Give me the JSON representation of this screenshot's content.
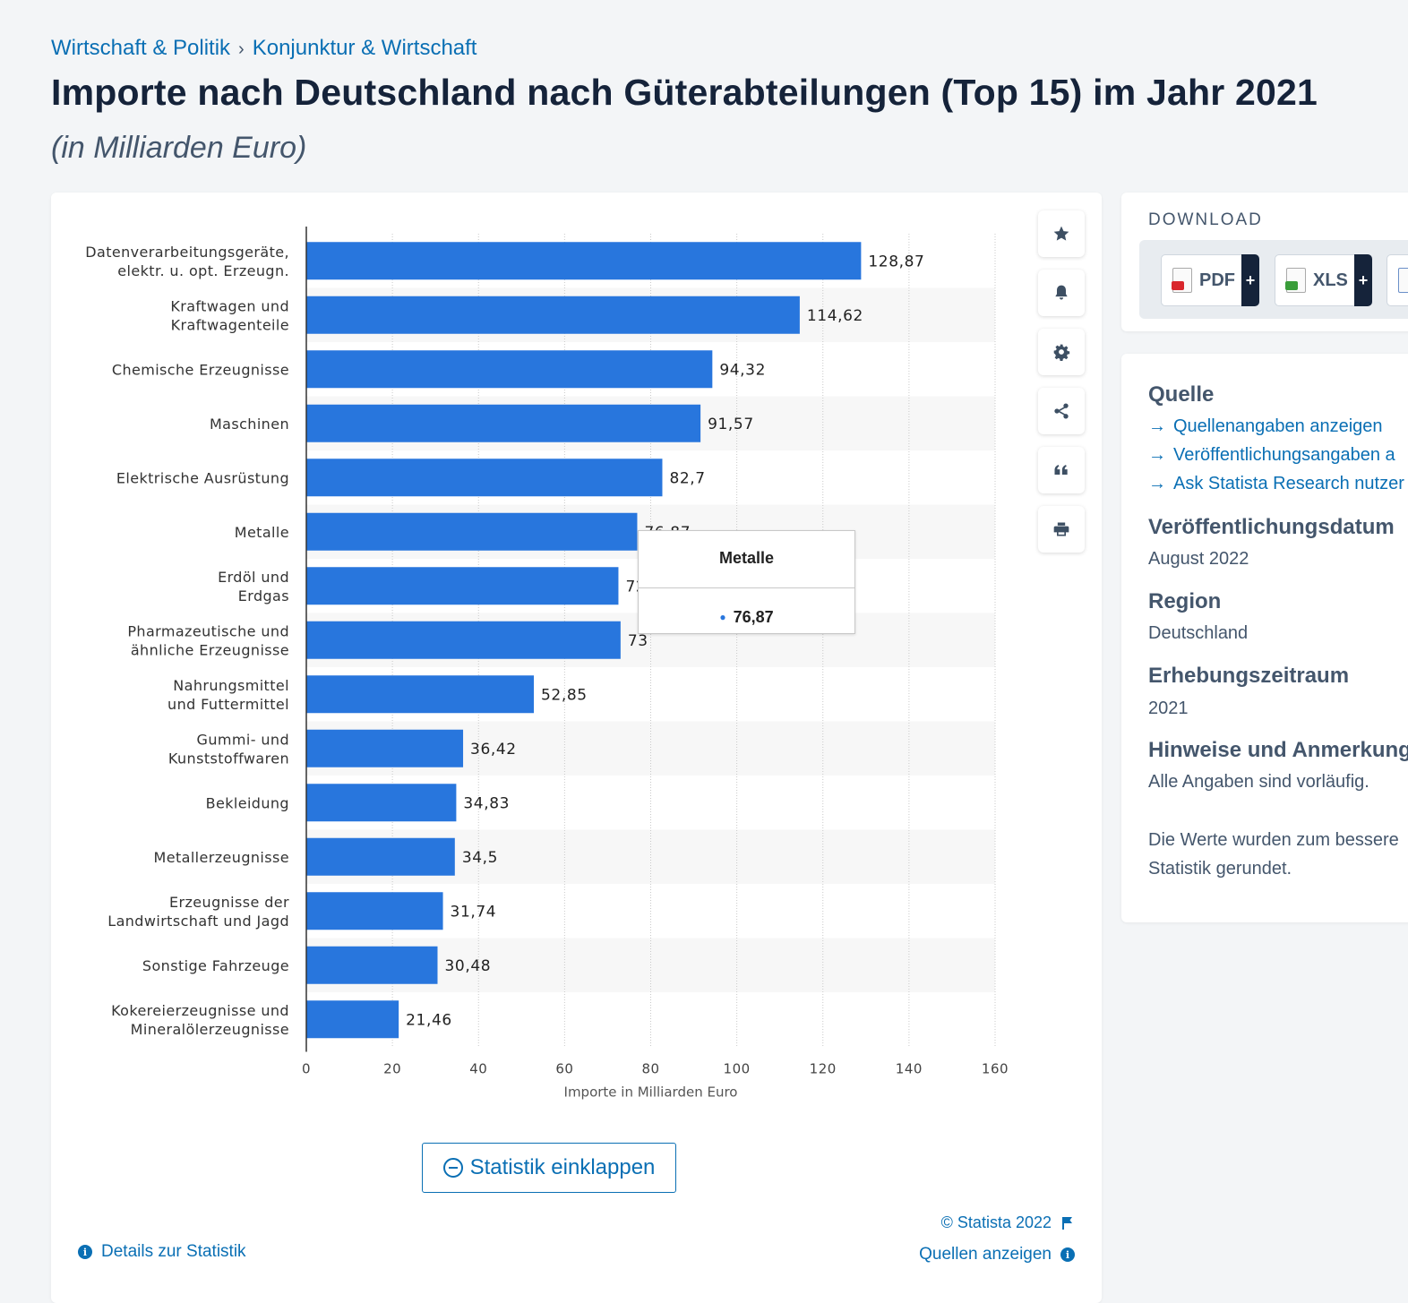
{
  "breadcrumb": {
    "level1": "Wirtschaft & Politik",
    "separator": "›",
    "level2": "Konjunktur & Wirtschaft"
  },
  "header": {
    "title": "Importe nach Deutschland nach Güterabteilungen (Top 15) im Jahr 2021",
    "subtitle": "(in Milliarden Euro)"
  },
  "toolbar": {
    "icons": [
      "star-icon",
      "bell-icon",
      "gear-icon",
      "share-icon",
      "quote-icon",
      "print-icon"
    ]
  },
  "tooltip": {
    "title": "Metalle",
    "value": "76,87"
  },
  "chart_data": {
    "type": "bar",
    "orientation": "horizontal",
    "categories": [
      [
        "Datenverarbeitungsgeräte,",
        "elektr. u. opt. Erzeugn."
      ],
      [
        "Kraftwagen und",
        "Kraftwagenteile"
      ],
      [
        "Chemische Erzeugnisse"
      ],
      [
        "Maschinen"
      ],
      [
        "Elektrische Ausrüstung"
      ],
      [
        "Metalle"
      ],
      [
        "Erdöl und",
        "Erdgas"
      ],
      [
        "Pharmazeutische und",
        "ähnliche Erzeugnisse"
      ],
      [
        "Nahrungsmittel",
        "und Futtermittel"
      ],
      [
        "Gummi- und",
        "Kunststoffwaren"
      ],
      [
        "Bekleidung"
      ],
      [
        "Metallerzeugnisse"
      ],
      [
        "Erzeugnisse der",
        "Landwirtschaft und Jagd"
      ],
      [
        "Sonstige Fahrzeuge"
      ],
      [
        "Kokereierzeugnisse und",
        "Mineralölerzeugnisse"
      ]
    ],
    "values": [
      128.87,
      114.62,
      94.32,
      91.57,
      82.7,
      76.87,
      72.5,
      73,
      52.85,
      36.42,
      34.83,
      34.5,
      31.74,
      30.48,
      21.46
    ],
    "value_labels": [
      "128,87",
      "114,62",
      "94,32",
      "91,57",
      "82,7",
      "76,87",
      "72,5",
      "73",
      "52,85",
      "36,42",
      "34,83",
      "34,5",
      "31,74",
      "30,48",
      "21,46"
    ],
    "x_ticks": [
      "0",
      "20",
      "40",
      "60",
      "80",
      "100",
      "120",
      "140",
      "160"
    ],
    "xlim": [
      0,
      160
    ],
    "xlabel": "Importe in Milliarden Euro",
    "bar_color": "#2876dd",
    "grid": true,
    "highlighted_index": 5
  },
  "actions": {
    "collapse_label": "Statistik einklappen",
    "copyright": "© Statista 2022",
    "sources_label": "Quellen anzeigen",
    "details_label": "Details zur Statistik"
  },
  "download": {
    "title": "DOWNLOAD",
    "buttons": [
      {
        "label": "PDF",
        "color": "#d9262c"
      },
      {
        "label": "XLS",
        "color": "#3a9d3a"
      }
    ]
  },
  "info": {
    "source_heading": "Quelle",
    "source_links": [
      "Quellenangaben anzeigen",
      "Veröffentlichungsangaben a",
      "Ask Statista Research nutzer"
    ],
    "published_heading": "Veröffentlichungsdatum",
    "published_value": "August 2022",
    "region_heading": "Region",
    "region_value": "Deutschland",
    "period_heading": "Erhebungszeitraum",
    "period_value": "2021",
    "notes_heading": "Hinweise und Anmerkung",
    "notes_line1": "Alle Angaben sind vorläufig.",
    "notes_line2": "Die Werte wurden zum bessere",
    "notes_line3": "Statistik gerundet."
  },
  "colors": {
    "accent": "#0a6fb4",
    "bar": "#2876dd",
    "heading": "#15233a"
  }
}
